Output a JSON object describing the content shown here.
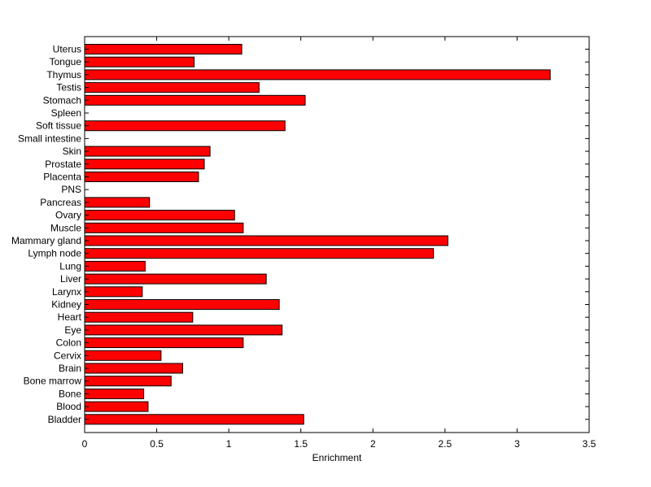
{
  "chart_data": {
    "type": "bar",
    "orientation": "horizontal",
    "xlabel": "Enrichment",
    "ylabel": "",
    "title": "",
    "xlim": [
      0,
      3.5
    ],
    "x_ticks": [
      0,
      0.5,
      1,
      1.5,
      2,
      2.5,
      3,
      3.5
    ],
    "x_tick_labels": [
      "0",
      "0.5",
      "1",
      "1.5",
      "2",
      "2.5",
      "3",
      "3.5"
    ],
    "grid": false,
    "legend": "none",
    "categories": [
      "Uterus",
      "Tongue",
      "Thymus",
      "Testis",
      "Stomach",
      "Spleen",
      "Soft tissue",
      "Small intestine",
      "Skin",
      "Prostate",
      "Placenta",
      "PNS",
      "Pancreas",
      "Ovary",
      "Muscle",
      "Mammary gland",
      "Lymph node",
      "Lung",
      "Liver",
      "Larynx",
      "Kidney",
      "Heart",
      "Eye",
      "Colon",
      "Cervix",
      "Brain",
      "Bone marrow",
      "Bone",
      "Blood",
      "Bladder"
    ],
    "values": [
      1.09,
      0.76,
      3.23,
      1.21,
      1.53,
      0,
      1.39,
      0,
      0.87,
      0.83,
      0.79,
      0,
      0.45,
      1.04,
      1.1,
      2.52,
      2.42,
      0.42,
      1.26,
      0.4,
      1.35,
      0.75,
      1.37,
      1.1,
      0.53,
      0.68,
      0.6,
      0.41,
      0.44,
      1.52
    ],
    "colors": {
      "bar_fill": "#ff0000",
      "bar_stroke": "#000000",
      "axes": "#000000"
    }
  }
}
